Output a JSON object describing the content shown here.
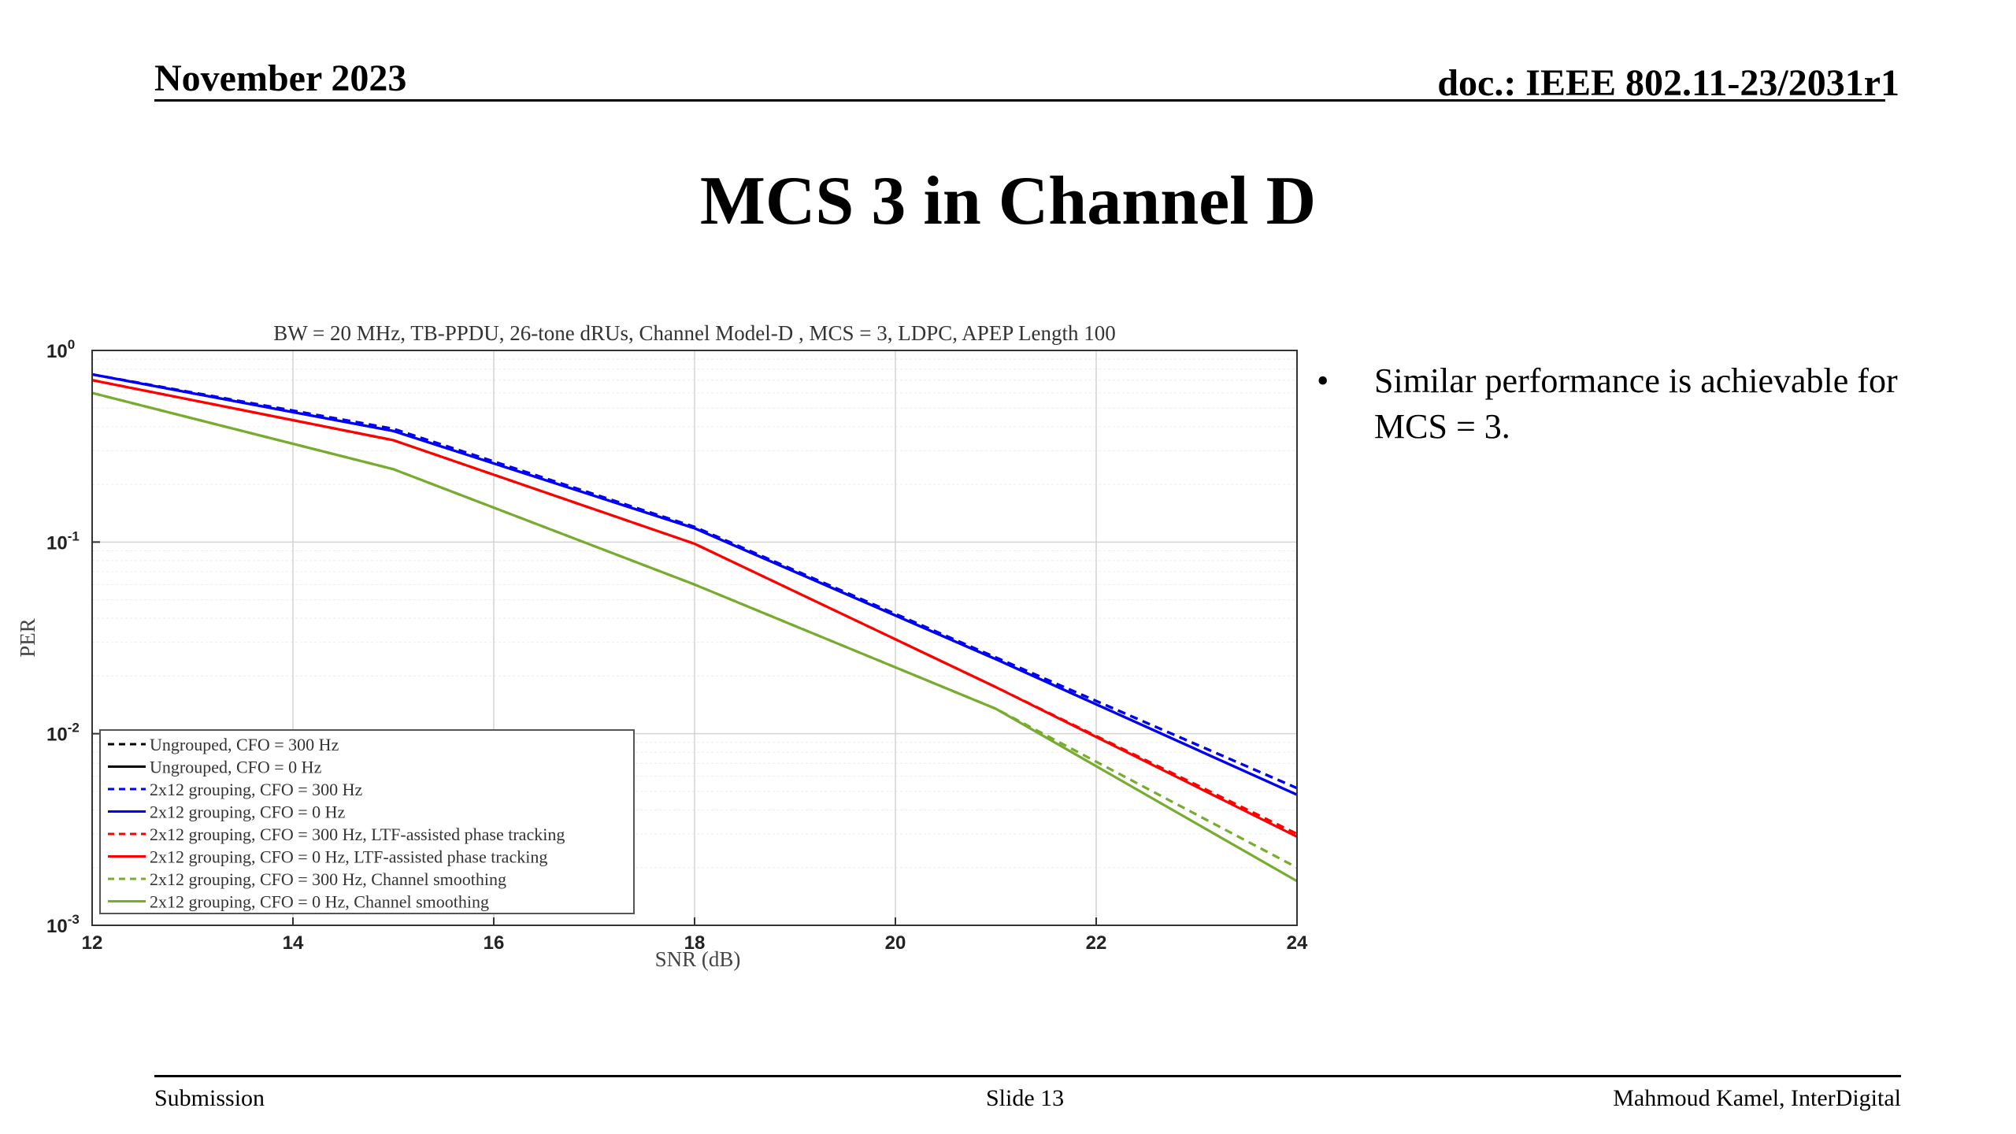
{
  "header": {
    "date": "November 2023",
    "doc": "doc.: IEEE 802.11-23/2031r1"
  },
  "slide_title": "MCS 3 in Channel D",
  "bullets": [
    "Similar performance is achievable for MCS = 3."
  ],
  "bullet_marker": "•",
  "footer": {
    "left": "Submission",
    "center": "Slide 13",
    "right": "Mahmoud Kamel, InterDigital"
  },
  "chart_data": {
    "type": "line",
    "title": "BW = 20 MHz, TB-PPDU, 26-tone dRUs, Channel Model-D , MCS = 3, LDPC, APEP Length 100",
    "xlabel": "SNR (dB)",
    "ylabel": "PER",
    "xlim": [
      12,
      24
    ],
    "ylim": [
      0.001,
      1
    ],
    "yscale": "log",
    "xticks": [
      "12",
      "14",
      "16",
      "18",
      "20",
      "22",
      "24"
    ],
    "yticks": [
      {
        "base": "10",
        "exp": "0"
      },
      {
        "base": "10",
        "exp": "-1"
      },
      {
        "base": "10",
        "exp": "-2"
      },
      {
        "base": "10",
        "exp": "-3"
      }
    ],
    "grid": true,
    "legend_position": "bottom-left",
    "x": [
      12,
      15,
      18,
      21,
      24
    ],
    "series": [
      {
        "name": "Ungrouped, CFO = 300 Hz",
        "color": "#000000",
        "dash": "dashed",
        "values": [
          0.75,
          0.39,
          0.12,
          0.025,
          0.0052
        ]
      },
      {
        "name": "Ungrouped, CFO = 0 Hz",
        "color": "#000000",
        "dash": "solid",
        "values": [
          0.75,
          0.38,
          0.118,
          0.0245,
          0.0048
        ]
      },
      {
        "name": "2x12 grouping, CFO = 300 Hz",
        "color": "#0000ff",
        "dash": "dashed",
        "values": [
          0.75,
          0.39,
          0.12,
          0.025,
          0.0052
        ]
      },
      {
        "name": "2x12 grouping, CFO = 0 Hz",
        "color": "#0000ff",
        "dash": "solid",
        "values": [
          0.75,
          0.38,
          0.118,
          0.0245,
          0.0048
        ]
      },
      {
        "name": "2x12 grouping, CFO = 300 Hz, LTF-assisted phase tracking",
        "color": "#ff0000",
        "dash": "dashed",
        "values": [
          0.7,
          0.34,
          0.098,
          0.0175,
          0.003
        ]
      },
      {
        "name": "2x12 grouping, CFO = 0 Hz, LTF-assisted phase tracking",
        "color": "#ff0000",
        "dash": "solid",
        "values": [
          0.7,
          0.34,
          0.098,
          0.0175,
          0.0029
        ]
      },
      {
        "name": "2x12 grouping, CFO = 300 Hz, Channel smoothing",
        "color": "#77ac30",
        "dash": "dashed",
        "values": [
          0.6,
          0.24,
          0.06,
          0.0135,
          0.002
        ]
      },
      {
        "name": "2x12 grouping, CFO = 0 Hz, Channel smoothing",
        "color": "#77ac30",
        "dash": "solid",
        "values": [
          0.6,
          0.24,
          0.06,
          0.0135,
          0.0017
        ]
      }
    ]
  }
}
